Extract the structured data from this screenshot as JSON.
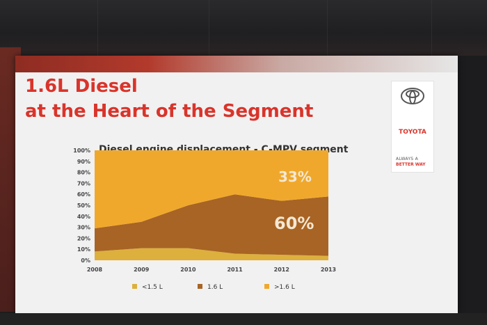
{
  "slide": {
    "title_line1": "1.6L Diesel",
    "title_line2": "at the Heart of the Segment",
    "accent_color": "#d9342b"
  },
  "brand": {
    "name": "TOYOTA",
    "tagline_1": "ALWAYS A",
    "tagline_2": "BETTER WAY",
    "icon": "toyota-logo-icon"
  },
  "chart_data": {
    "type": "area",
    "stacked": true,
    "title": "Diesel engine displacement - C-MPV segment",
    "x": [
      "2008",
      "2009",
      "2010",
      "2011",
      "2012",
      "2013"
    ],
    "yticks": [
      "0%",
      "10%",
      "20%",
      "30%",
      "40%",
      "50%",
      "60%",
      "70%",
      "80%",
      "90%",
      "100%"
    ],
    "ylim": [
      0,
      100
    ],
    "series": [
      {
        "name": "<1.5 L",
        "color": "#ddb03e",
        "values": [
          8,
          11,
          11,
          6,
          5,
          4
        ]
      },
      {
        "name": "1.6 L",
        "color": "#a86424",
        "values": [
          21,
          24,
          39,
          54,
          49,
          54
        ]
      },
      {
        "name": ">1.6 L",
        "color": "#f0a82c",
        "values": [
          71,
          65,
          50,
          40,
          46,
          42
        ]
      }
    ],
    "annotations": [
      "33%",
      "60%"
    ],
    "legend_position": "bottom"
  }
}
